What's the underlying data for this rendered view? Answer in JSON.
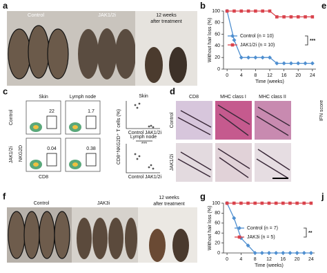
{
  "panels": {
    "a": {
      "label": "a",
      "control": "Control",
      "treated": "JAK1/2i",
      "after": [
        "12 weeks",
        "after treatment"
      ]
    },
    "b": {
      "label": "b"
    },
    "c": {
      "label": "c",
      "columns": [
        "Skin",
        "Lymph node"
      ],
      "rows": [
        "Control",
        "JAK1/2i"
      ],
      "y_axis": "NKG2D",
      "x_axis": "CD8",
      "gates": [
        "22",
        "1.7",
        "0.04",
        "0.38"
      ],
      "dot_titles": [
        "Skin",
        "Lymph node"
      ],
      "dot_ylabel": "CD8⁺NKG2D⁺ T cells (%)",
      "dot_xlabels": [
        "Control",
        "JAK1/2i"
      ],
      "significance": "***"
    },
    "d": {
      "label": "d",
      "columns": [
        "CD8",
        "MHC class I",
        "MHC class II"
      ],
      "rows": [
        "Control",
        "JAK1/2i"
      ]
    },
    "e": {
      "label": "e",
      "ylabel": "IFN score"
    },
    "f": {
      "label": "f",
      "control": "Control",
      "treated": "JAK3i",
      "after": [
        "12 weeks",
        "after treatment"
      ]
    },
    "g": {
      "label": "g"
    },
    "j": {
      "label": "j"
    }
  },
  "chart_data": [
    {
      "type": "line",
      "ylabel": "Without hair loss (%)",
      "xlabel": "Time (weeks)",
      "significance": "***",
      "x": [
        0,
        2,
        4,
        6,
        8,
        10,
        12,
        14,
        16,
        18,
        20,
        22,
        24
      ],
      "series": [
        {
          "name": "Control (n = 10)",
          "color": "#4f8fd0",
          "marker": "diamond",
          "values": [
            100,
            50,
            20,
            20,
            20,
            20,
            20,
            10,
            10,
            10,
            10,
            10,
            10
          ]
        },
        {
          "name": "JAK1/2i (n = 10)",
          "color": "#d9434c",
          "marker": "square",
          "values": [
            100,
            100,
            100,
            100,
            100,
            100,
            100,
            90,
            90,
            90,
            90,
            90,
            90
          ]
        }
      ],
      "xlim": [
        -1,
        25
      ],
      "ylim": [
        0,
        100
      ],
      "xticks": [
        0,
        4,
        8,
        12,
        16,
        20,
        24
      ],
      "yticks": [
        0,
        20,
        40,
        60,
        80,
        100
      ]
    },
    {
      "type": "line",
      "ylabel": "Without hair loss (%)",
      "xlabel": "Time (weeks)",
      "significance": "**",
      "x": [
        0,
        2,
        4,
        6,
        8,
        10,
        12,
        14,
        16,
        18,
        20,
        22,
        24
      ],
      "series": [
        {
          "name": "Control (n = 7)",
          "color": "#4f8fd0",
          "marker": "diamond",
          "values": [
            100,
            70,
            30,
            15,
            0,
            0,
            0,
            0,
            0,
            0,
            0,
            0,
            0
          ]
        },
        {
          "name": "JAK3i (n = 5)",
          "color": "#d9434c",
          "marker": "square",
          "values": [
            100,
            100,
            100,
            100,
            100,
            100,
            100,
            100,
            100,
            100,
            100,
            100,
            100
          ]
        }
      ],
      "xlim": [
        -1,
        25
      ],
      "ylim": [
        0,
        100
      ],
      "xticks": [
        0,
        4,
        8,
        12,
        16,
        20,
        24
      ],
      "yticks": [
        0,
        20,
        40,
        60,
        80,
        100
      ]
    }
  ]
}
